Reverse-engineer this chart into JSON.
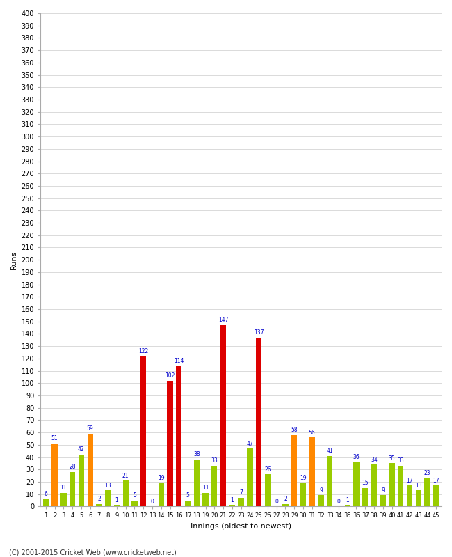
{
  "xlabel": "Innings (oldest to newest)",
  "ylabel": "Runs",
  "footer": "(C) 2001-2015 Cricket Web (www.cricketweb.net)",
  "ylim": [
    0,
    400
  ],
  "innings": [
    1,
    2,
    3,
    4,
    5,
    6,
    7,
    8,
    9,
    10,
    11,
    12,
    13,
    14,
    15,
    16,
    17,
    18,
    19,
    20,
    21,
    22,
    23,
    24,
    25,
    26,
    27,
    28,
    29,
    30,
    31,
    32,
    33,
    34,
    35,
    36,
    37,
    38,
    39,
    40,
    41,
    42,
    43,
    44,
    45
  ],
  "values": [
    6,
    51,
    11,
    28,
    42,
    59,
    2,
    13,
    1,
    21,
    5,
    122,
    0,
    19,
    102,
    114,
    5,
    38,
    11,
    33,
    147,
    1,
    7,
    47,
    137,
    26,
    0,
    2,
    58,
    19,
    56,
    9,
    41,
    0,
    1,
    36,
    15,
    34,
    9,
    35,
    33,
    17,
    13,
    23,
    17
  ],
  "colors": [
    "green",
    "orange",
    "green",
    "green",
    "green",
    "orange",
    "green",
    "green",
    "green",
    "green",
    "green",
    "red",
    "green",
    "green",
    "red",
    "red",
    "green",
    "green",
    "green",
    "green",
    "red",
    "green",
    "green",
    "green",
    "red",
    "green",
    "green",
    "green",
    "orange",
    "green",
    "orange",
    "green",
    "green",
    "green",
    "green",
    "green",
    "green",
    "green",
    "green",
    "green",
    "green",
    "green",
    "green",
    "green",
    "green"
  ],
  "color_map": {
    "green": "#99cc00",
    "orange": "#ff8800",
    "red": "#dd0000"
  },
  "bg_color": "#ffffff",
  "grid_color": "#cccccc",
  "label_color": "#0000cc",
  "label_fontsize": 5.5,
  "ytick_fontsize": 7,
  "xtick_fontsize": 6,
  "axis_label_fontsize": 8,
  "footer_fontsize": 7
}
